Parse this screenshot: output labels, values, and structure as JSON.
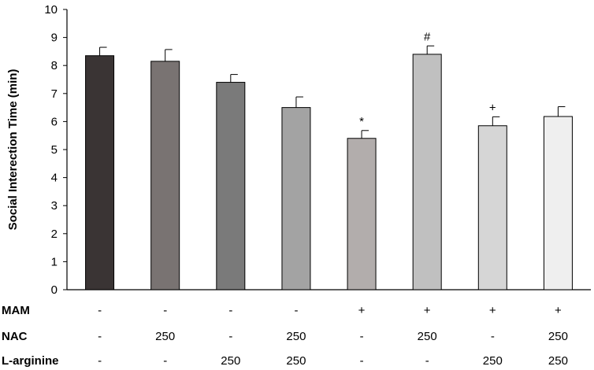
{
  "chart_data": {
    "type": "bar",
    "ylabel": "Social Interection Time (min)",
    "ylim": [
      0,
      10
    ],
    "yticks": [
      0,
      1,
      2,
      3,
      4,
      5,
      6,
      7,
      8,
      9,
      10
    ],
    "grid": false,
    "values": [
      8.35,
      8.15,
      7.4,
      6.5,
      5.4,
      8.4,
      5.85,
      6.18
    ],
    "errors": [
      0.3,
      0.42,
      0.28,
      0.38,
      0.28,
      0.3,
      0.32,
      0.35
    ],
    "annotations": [
      "",
      "",
      "",
      "",
      "*",
      "#",
      "+",
      ""
    ],
    "bar_colors": [
      "#3a3434",
      "#797372",
      "#7a7a7a",
      "#a3a3a3",
      "#b2adac",
      "#c0c0c0",
      "#d6d6d6",
      "#efefef"
    ],
    "condition_rows": [
      {
        "label": "MAM",
        "values": [
          "-",
          "-",
          "-",
          "-",
          "+",
          "+",
          "+",
          "+"
        ]
      },
      {
        "label": "NAC",
        "values": [
          "-",
          "250",
          "-",
          "250",
          "-",
          "250",
          "-",
          "250"
        ]
      },
      {
        "label": "L-arginine",
        "values": [
          "-",
          "-",
          "250",
          "250",
          "-",
          "-",
          "250",
          "250"
        ]
      }
    ]
  }
}
